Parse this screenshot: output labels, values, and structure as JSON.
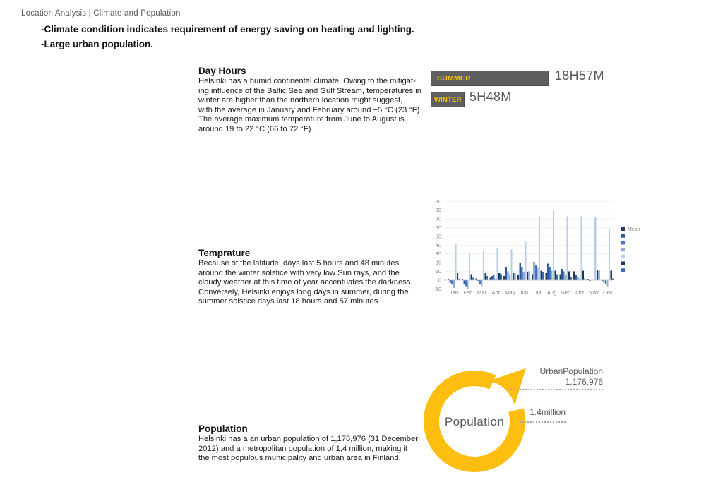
{
  "page": {
    "breadcrumb": "Location Analysis | Climate and Population",
    "bullets": [
      "-Climate condition indicates requirement of energy saving on heating and lighting.",
      "-Large urban population."
    ]
  },
  "day_hours": {
    "heading": "Day Hours",
    "lines": [
      "Helsinki has a humid continental climate. Owing to the mitigat-",
      "ing influence of the Baltic Sea and Gulf Stream, temperatures in",
      "winter are higher than the northern location might suggest,",
      "with the average in January and February around −5 °C (23 °F).",
      "The average maximum temperature from June to August is",
      "around 19 to 22 °C (66 to 72 °F)."
    ],
    "summer": {
      "label": "SUMMER",
      "value": "18H57M"
    },
    "winter": {
      "label": "WINTER",
      "value": "5H48M"
    },
    "colors": {
      "bar": "#5E5F61",
      "bar_label": "#FFC000",
      "value_text": "#595959"
    }
  },
  "temperature": {
    "heading": "Temprature",
    "lines": [
      "Because of the latitude, days last 5 hours and 48 minutes",
      "around the winter solstice with very low Sun rays, and the",
      "cloudy weather at this time of year accentuates the darkness.",
      "Conversely, Helsinki enjoys long days in summer, during the",
      "summer solstice days last 18 hours and 57 minutes ."
    ]
  },
  "population": {
    "heading": "Population",
    "lines": [
      "Helsinki has a an urban population of 1,176,976 (31 December",
      "2012) and a metropolitan population of 1,4 million, making it",
      "the most populous municipality and urban area in Finland."
    ]
  },
  "chart_data": [
    {
      "type": "bar",
      "categories": [
        "Jan",
        "Feb",
        "Mar",
        "Apr",
        "May",
        "Jun",
        "Jul",
        "Aug",
        "Sep",
        "Oct",
        "Nov",
        "Dec"
      ],
      "y_ticks": [
        90,
        80,
        70,
        60,
        50,
        40,
        30,
        20,
        10,
        0,
        -10
      ],
      "ylim": [
        -10,
        90
      ],
      "grid": "faint-horizontal",
      "legend_position": "right",
      "series": [
        {
          "name": "Mean",
          "color": "#1F3864",
          "values": [
            1,
            1,
            2,
            3,
            5,
            6,
            7,
            8,
            7,
            10,
            1,
            -1
          ]
        },
        {
          "name": "",
          "color": "#2E5B9D",
          "values": [
            -3,
            -4,
            -1,
            5,
            15,
            20,
            21,
            19,
            13,
            6,
            -1,
            -3
          ]
        },
        {
          "name": "",
          "color": "#4472C4",
          "values": [
            -5,
            -7,
            -4,
            6,
            10,
            15,
            17,
            15,
            10,
            4,
            0,
            -5
          ]
        },
        {
          "name": "",
          "color": "#8FAADC",
          "values": [
            -9,
            -10,
            -7,
            2,
            7,
            9,
            14,
            11,
            6,
            2,
            0,
            -7
          ]
        },
        {
          "name": "",
          "color": "#B9CDE5",
          "values": [
            41,
            31,
            34,
            37,
            35,
            44,
            73,
            80,
            73,
            73,
            72,
            58
          ]
        },
        {
          "name": "",
          "color": "#17375E",
          "values": [
            8,
            7,
            8,
            8,
            8,
            9,
            11,
            11,
            10,
            11,
            12,
            11
          ]
        },
        {
          "name": "",
          "color": "#3A6BB0",
          "values": [
            2,
            3,
            5,
            7,
            8,
            10,
            9,
            7,
            4,
            2,
            11,
            2
          ]
        }
      ]
    },
    {
      "type": "donut",
      "center_label": "Population",
      "color": "#FEBE10",
      "callouts": [
        {
          "label": "UrbanPopulation",
          "value": "1,176,976"
        },
        {
          "label": "1.4million",
          "value": ""
        }
      ]
    }
  ]
}
